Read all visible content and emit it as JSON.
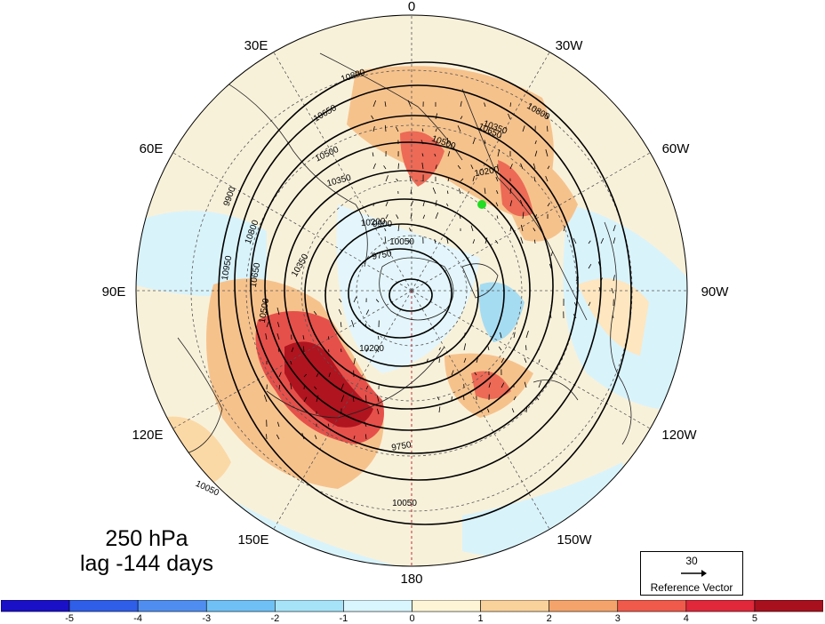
{
  "title": "250 hPa",
  "subtitle": "lag -144 days",
  "meridian_labels": [
    {
      "text": "0"
    },
    {
      "text": "30W"
    },
    {
      "text": "60W"
    },
    {
      "text": "90W"
    },
    {
      "text": "120W"
    },
    {
      "text": "150W"
    },
    {
      "text": "180"
    },
    {
      "text": "150E"
    },
    {
      "text": "120E"
    },
    {
      "text": "90E"
    },
    {
      "text": "60E"
    },
    {
      "text": "30E"
    }
  ],
  "contour_labels": [
    "10800",
    "10650",
    "10500",
    "10350",
    "10200",
    "10050",
    "9900",
    "9750",
    "10800",
    "10650",
    "10500",
    "10350",
    "10200",
    "10050",
    "9900",
    "10950",
    "10800",
    "10650",
    "10500",
    "10350",
    "10200",
    "10050",
    "9750"
  ],
  "reference_vector": {
    "value": "30",
    "caption": "Reference Vector"
  },
  "colorbar": {
    "ticks": [
      "-5",
      "-4",
      "-3",
      "-2",
      "-1",
      "0",
      "1",
      "2",
      "3",
      "4",
      "5"
    ],
    "colors": [
      "#1a10c8",
      "#2f5ee8",
      "#4f8ef0",
      "#6fc0f5",
      "#a6e3f9",
      "#d9f5fd",
      "#fdf5d6",
      "#f9d19a",
      "#f4a46a",
      "#ef5a4a",
      "#e0283a",
      "#a8101e"
    ]
  },
  "marker_color": "#22dd22",
  "map_colors": {
    "ocean": "#eaf6fa",
    "land_neutral": "#f7f0d8",
    "warm": "#f6c28c",
    "hot": "#e6504a",
    "extreme": "#b0141f",
    "cold": "#a6dcf2"
  }
}
